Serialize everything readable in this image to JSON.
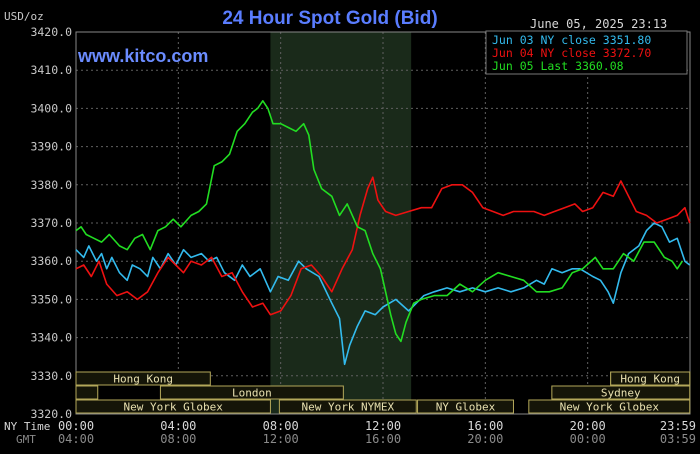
{
  "header": {
    "unit_label": "USD/oz",
    "title": "24 Hour Spot Gold (Bid)",
    "timestamp": "June 05, 2025 23:13",
    "watermark": "www.kitco.com"
  },
  "colors": {
    "background": "#000000",
    "plot_background": "#000000",
    "ny_session_shade": "#1a2a1a",
    "grid": "#606060",
    "axis_text": "#c8c8c8",
    "title": "#5a7dff",
    "watermark": "#6b8cff",
    "session_box_fill": "#151508",
    "session_box_border": "#b4a85a",
    "session_text": "#e8e0b0",
    "time_ny": "#d8d8d8",
    "time_gmt": "#8a8a8a"
  },
  "time_axis": {
    "ny_label": "NY Time",
    "gmt_label": "GMT",
    "ticks_ny": [
      "00:00",
      "04:00",
      "08:00",
      "12:00",
      "16:00",
      "20:00",
      "23:59"
    ],
    "ticks_gmt": [
      "04:00",
      "08:00",
      "12:00",
      "16:00",
      "20:00",
      "00:00",
      "03:59"
    ]
  },
  "sessions": [
    {
      "label": "Hong Kong",
      "row": 0,
      "start": 0.0,
      "end": 5.25
    },
    {
      "label": "",
      "row": 1,
      "start": 0.0,
      "end": 0.85
    },
    {
      "label": "London",
      "row": 1,
      "start": 3.3,
      "end": 10.45
    },
    {
      "label": "New York Globex",
      "row": 2,
      "start": 0.0,
      "end": 7.6
    },
    {
      "label": "New York NYMEX",
      "row": 2,
      "start": 7.95,
      "end": 13.3
    },
    {
      "label": "NY Globex",
      "row": 2,
      "start": 13.35,
      "end": 17.1
    },
    {
      "label": "",
      "row": 0,
      "start": 20.9,
      "end": 23.99
    },
    {
      "label": "Hong Kong",
      "row": 0,
      "start": 20.9,
      "end": 23.99
    },
    {
      "label": "Sydney",
      "row": 1,
      "start": 18.6,
      "end": 23.99
    },
    {
      "label": "New York Globex",
      "row": 2,
      "start": 17.7,
      "end": 23.99
    }
  ],
  "chart_data": {
    "type": "line",
    "title": "24 Hour Spot Gold (Bid)",
    "ylabel": "USD/oz",
    "ylim": [
      3320,
      3420
    ],
    "yticks": [
      3320,
      3330,
      3340,
      3350,
      3360,
      3370,
      3380,
      3390,
      3400,
      3410,
      3420
    ],
    "ytick_labels": [
      "3320.0",
      "3330.0",
      "3340.0",
      "3350.0",
      "3360.0",
      "3370.0",
      "3380.0",
      "3390.0",
      "3400.0",
      "3410.0",
      "3420.0"
    ],
    "xlim": [
      0,
      24
    ],
    "grid": true,
    "shaded_region": [
      7.6,
      13.1
    ],
    "legend_position": "top-right",
    "series": [
      {
        "name": "Jun 03 NY close 3351.80",
        "color": "#33bbee",
        "points": [
          [
            0,
            3363
          ],
          [
            0.3,
            3361
          ],
          [
            0.5,
            3364
          ],
          [
            0.8,
            3360
          ],
          [
            1.0,
            3362
          ],
          [
            1.2,
            3358
          ],
          [
            1.4,
            3361
          ],
          [
            1.7,
            3357
          ],
          [
            2.0,
            3355
          ],
          [
            2.2,
            3359
          ],
          [
            2.5,
            3358
          ],
          [
            2.8,
            3356
          ],
          [
            3.0,
            3361
          ],
          [
            3.3,
            3358
          ],
          [
            3.6,
            3362
          ],
          [
            3.9,
            3359
          ],
          [
            4.2,
            3363
          ],
          [
            4.5,
            3361
          ],
          [
            4.9,
            3362
          ],
          [
            5.2,
            3360
          ],
          [
            5.5,
            3361
          ],
          [
            5.8,
            3357
          ],
          [
            6.2,
            3355
          ],
          [
            6.5,
            3359
          ],
          [
            6.8,
            3356
          ],
          [
            7.2,
            3358
          ],
          [
            7.6,
            3352
          ],
          [
            7.9,
            3356
          ],
          [
            8.3,
            3355
          ],
          [
            8.7,
            3360
          ],
          [
            9.0,
            3358
          ],
          [
            9.5,
            3356
          ],
          [
            10.0,
            3349
          ],
          [
            10.3,
            3345
          ],
          [
            10.5,
            3333
          ],
          [
            10.7,
            3338
          ],
          [
            11.0,
            3343
          ],
          [
            11.3,
            3347
          ],
          [
            11.7,
            3346
          ],
          [
            12.0,
            3348
          ],
          [
            12.5,
            3350
          ],
          [
            13.0,
            3347
          ],
          [
            13.3,
            3349
          ],
          [
            13.6,
            3351
          ],
          [
            14.0,
            3352
          ],
          [
            14.5,
            3353
          ],
          [
            15.0,
            3352
          ],
          [
            15.5,
            3353
          ],
          [
            16.0,
            3352
          ],
          [
            16.5,
            3353
          ],
          [
            17.0,
            3352
          ],
          [
            17.5,
            3353
          ],
          [
            18.0,
            3355
          ],
          [
            18.3,
            3354
          ],
          [
            18.6,
            3358
          ],
          [
            19.0,
            3357
          ],
          [
            19.4,
            3358
          ],
          [
            19.7,
            3358
          ],
          [
            20.2,
            3356
          ],
          [
            20.5,
            3355
          ],
          [
            20.8,
            3352
          ],
          [
            21.0,
            3349
          ],
          [
            21.3,
            3357
          ],
          [
            21.6,
            3362
          ],
          [
            22.0,
            3364
          ],
          [
            22.3,
            3368
          ],
          [
            22.6,
            3370
          ],
          [
            22.9,
            3369
          ],
          [
            23.2,
            3365
          ],
          [
            23.5,
            3366
          ],
          [
            23.8,
            3360
          ],
          [
            23.99,
            3359
          ]
        ]
      },
      {
        "name": "Jun 04 NY close 3372.70",
        "color": "#ee1111",
        "points": [
          [
            0,
            3358
          ],
          [
            0.3,
            3359
          ],
          [
            0.6,
            3356
          ],
          [
            0.9,
            3360
          ],
          [
            1.2,
            3354
          ],
          [
            1.6,
            3351
          ],
          [
            2.0,
            3352
          ],
          [
            2.4,
            3350
          ],
          [
            2.8,
            3352
          ],
          [
            3.2,
            3357
          ],
          [
            3.6,
            3361
          ],
          [
            3.9,
            3359
          ],
          [
            4.2,
            3357
          ],
          [
            4.5,
            3360
          ],
          [
            4.9,
            3359
          ],
          [
            5.3,
            3361
          ],
          [
            5.7,
            3356
          ],
          [
            6.1,
            3357
          ],
          [
            6.5,
            3352
          ],
          [
            6.9,
            3348
          ],
          [
            7.3,
            3349
          ],
          [
            7.6,
            3346
          ],
          [
            8.0,
            3347
          ],
          [
            8.4,
            3351
          ],
          [
            8.8,
            3358
          ],
          [
            9.2,
            3359
          ],
          [
            9.6,
            3356
          ],
          [
            10.0,
            3352
          ],
          [
            10.4,
            3358
          ],
          [
            10.8,
            3363
          ],
          [
            11.1,
            3372
          ],
          [
            11.4,
            3379
          ],
          [
            11.6,
            3382
          ],
          [
            11.8,
            3376
          ],
          [
            12.1,
            3373
          ],
          [
            12.5,
            3372
          ],
          [
            13.0,
            3373
          ],
          [
            13.5,
            3374
          ],
          [
            13.9,
            3374
          ],
          [
            14.3,
            3379
          ],
          [
            14.7,
            3380
          ],
          [
            15.1,
            3380
          ],
          [
            15.5,
            3378
          ],
          [
            15.9,
            3374
          ],
          [
            16.3,
            3373
          ],
          [
            16.7,
            3372
          ],
          [
            17.1,
            3373
          ],
          [
            17.5,
            3373
          ],
          [
            17.9,
            3373
          ],
          [
            18.3,
            3372
          ],
          [
            18.7,
            3373
          ],
          [
            19.1,
            3374
          ],
          [
            19.5,
            3375
          ],
          [
            19.8,
            3373
          ],
          [
            20.2,
            3374
          ],
          [
            20.6,
            3378
          ],
          [
            21.0,
            3377
          ],
          [
            21.3,
            3381
          ],
          [
            21.6,
            3377
          ],
          [
            21.9,
            3373
          ],
          [
            22.3,
            3372
          ],
          [
            22.7,
            3370
          ],
          [
            23.1,
            3371
          ],
          [
            23.5,
            3372
          ],
          [
            23.8,
            3374
          ],
          [
            23.99,
            3370
          ]
        ]
      },
      {
        "name": "Jun 05 Last 3360.08",
        "color": "#22dd22",
        "points": [
          [
            0,
            3368
          ],
          [
            0.2,
            3369
          ],
          [
            0.4,
            3367
          ],
          [
            0.7,
            3366
          ],
          [
            1.0,
            3365
          ],
          [
            1.3,
            3367
          ],
          [
            1.7,
            3364
          ],
          [
            2.0,
            3363
          ],
          [
            2.3,
            3366
          ],
          [
            2.6,
            3367
          ],
          [
            2.9,
            3363
          ],
          [
            3.2,
            3368
          ],
          [
            3.5,
            3369
          ],
          [
            3.8,
            3371
          ],
          [
            4.1,
            3369
          ],
          [
            4.5,
            3372
          ],
          [
            4.8,
            3373
          ],
          [
            5.1,
            3375
          ],
          [
            5.4,
            3385
          ],
          [
            5.7,
            3386
          ],
          [
            6.0,
            3388
          ],
          [
            6.3,
            3394
          ],
          [
            6.6,
            3396
          ],
          [
            6.9,
            3399
          ],
          [
            7.1,
            3400
          ],
          [
            7.3,
            3402
          ],
          [
            7.5,
            3400
          ],
          [
            7.7,
            3396
          ],
          [
            8.0,
            3396
          ],
          [
            8.3,
            3395
          ],
          [
            8.6,
            3394
          ],
          [
            8.9,
            3396
          ],
          [
            9.1,
            3393
          ],
          [
            9.3,
            3384
          ],
          [
            9.6,
            3379
          ],
          [
            10.0,
            3377
          ],
          [
            10.3,
            3372
          ],
          [
            10.6,
            3375
          ],
          [
            11.0,
            3369
          ],
          [
            11.3,
            3368
          ],
          [
            11.6,
            3362
          ],
          [
            11.9,
            3358
          ],
          [
            12.1,
            3352
          ],
          [
            12.3,
            3346
          ],
          [
            12.5,
            3341
          ],
          [
            12.7,
            3339
          ],
          [
            12.9,
            3344
          ],
          [
            13.2,
            3349
          ],
          [
            13.5,
            3350
          ],
          [
            14.0,
            3351
          ],
          [
            14.5,
            3351
          ],
          [
            15.0,
            3354
          ],
          [
            15.5,
            3352
          ],
          [
            16.0,
            3355
          ],
          [
            16.5,
            3357
          ],
          [
            17.0,
            3356
          ],
          [
            17.5,
            3355
          ],
          [
            18.0,
            3352
          ],
          [
            18.5,
            3352
          ],
          [
            19.0,
            3353
          ],
          [
            19.4,
            3357
          ],
          [
            19.8,
            3358
          ],
          [
            20.3,
            3361
          ],
          [
            20.6,
            3358
          ],
          [
            21.0,
            3358
          ],
          [
            21.4,
            3362
          ],
          [
            21.8,
            3360
          ],
          [
            22.2,
            3365
          ],
          [
            22.6,
            3365
          ],
          [
            23.0,
            3361
          ],
          [
            23.3,
            3360
          ],
          [
            23.5,
            3358
          ],
          [
            23.7,
            3360
          ]
        ]
      }
    ]
  }
}
